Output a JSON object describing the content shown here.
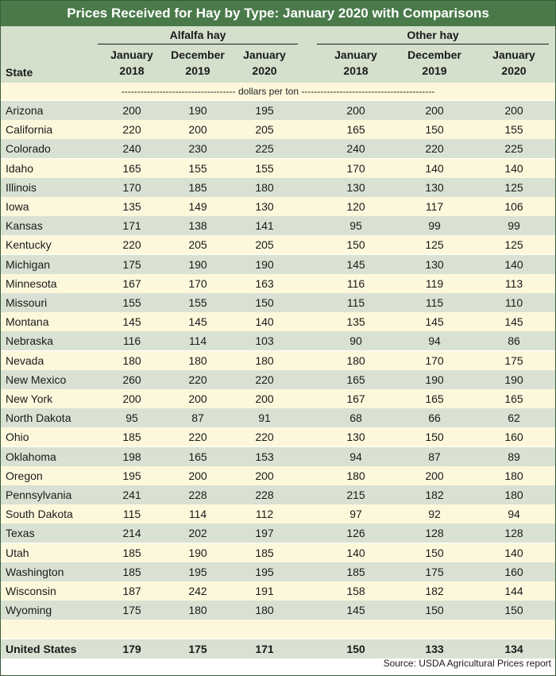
{
  "title": "Prices Received for Hay by Type: January 2020 with Comparisons",
  "groups": {
    "alfalfa": "Alfalfa hay",
    "other": "Other hay"
  },
  "columns": [
    {
      "line1": "January",
      "line2": "2018"
    },
    {
      "line1": "December",
      "line2": "2019"
    },
    {
      "line1": "January",
      "line2": "2020"
    },
    {
      "line1": "January",
      "line2": "2018"
    },
    {
      "line1": "December",
      "line2": "2019"
    },
    {
      "line1": "January",
      "line2": "2020"
    }
  ],
  "state_header": "State",
  "units": "------------------------------------ dollars per ton ------------------------------------------",
  "rows": [
    {
      "state": "Arizona",
      "values": [
        "200",
        "190",
        "195",
        "200",
        "200",
        "200"
      ]
    },
    {
      "state": "California",
      "values": [
        "220",
        "200",
        "205",
        "165",
        "150",
        "155"
      ]
    },
    {
      "state": "Colorado",
      "values": [
        "240",
        "230",
        "225",
        "240",
        "220",
        "225"
      ]
    },
    {
      "state": "Idaho",
      "values": [
        "165",
        "155",
        "155",
        "170",
        "140",
        "140"
      ]
    },
    {
      "state": "Illinois",
      "values": [
        "170",
        "185",
        "180",
        "130",
        "130",
        "125"
      ]
    },
    {
      "state": "Iowa",
      "values": [
        "135",
        "149",
        "130",
        "120",
        "117",
        "106"
      ]
    },
    {
      "state": "Kansas",
      "values": [
        "171",
        "138",
        "141",
        "95",
        "99",
        "99"
      ]
    },
    {
      "state": "Kentucky",
      "values": [
        "220",
        "205",
        "205",
        "150",
        "125",
        "125"
      ]
    },
    {
      "state": "Michigan",
      "values": [
        "175",
        "190",
        "190",
        "145",
        "130",
        "140"
      ]
    },
    {
      "state": "Minnesota",
      "values": [
        "167",
        "170",
        "163",
        "116",
        "119",
        "113"
      ]
    },
    {
      "state": "Missouri",
      "values": [
        "155",
        "155",
        "150",
        "115",
        "115",
        "110"
      ]
    },
    {
      "state": "Montana",
      "values": [
        "145",
        "145",
        "140",
        "135",
        "145",
        "145"
      ]
    },
    {
      "state": "Nebraska",
      "values": [
        "116",
        "114",
        "103",
        "90",
        "94",
        "86"
      ]
    },
    {
      "state": "Nevada",
      "values": [
        "180",
        "180",
        "180",
        "180",
        "170",
        "175"
      ]
    },
    {
      "state": "New Mexico",
      "values": [
        "260",
        "220",
        "220",
        "165",
        "190",
        "190"
      ]
    },
    {
      "state": "New York",
      "values": [
        "200",
        "200",
        "200",
        "167",
        "165",
        "165"
      ]
    },
    {
      "state": "North Dakota",
      "values": [
        "95",
        "87",
        "91",
        "68",
        "66",
        "62"
      ]
    },
    {
      "state": "Ohio",
      "values": [
        "185",
        "220",
        "220",
        "130",
        "150",
        "160"
      ]
    },
    {
      "state": "Oklahoma",
      "values": [
        "198",
        "165",
        "153",
        "94",
        "87",
        "89"
      ]
    },
    {
      "state": "Oregon",
      "values": [
        "195",
        "200",
        "200",
        "180",
        "200",
        "180"
      ]
    },
    {
      "state": "Pennsylvania",
      "values": [
        "241",
        "228",
        "228",
        "215",
        "182",
        "180"
      ]
    },
    {
      "state": "South Dakota",
      "values": [
        "115",
        "114",
        "112",
        "97",
        "92",
        "94"
      ]
    },
    {
      "state": "Texas",
      "values": [
        "214",
        "202",
        "197",
        "126",
        "128",
        "128"
      ]
    },
    {
      "state": "Utah",
      "values": [
        "185",
        "190",
        "185",
        "140",
        "150",
        "140"
      ]
    },
    {
      "state": "Washington",
      "values": [
        "185",
        "195",
        "195",
        "185",
        "175",
        "160"
      ]
    },
    {
      "state": "Wisconsin",
      "values": [
        "187",
        "242",
        "191",
        "158",
        "182",
        "144"
      ]
    },
    {
      "state": "Wyoming",
      "values": [
        "175",
        "180",
        "180",
        "145",
        "150",
        "150"
      ]
    }
  ],
  "total": {
    "state": "United States",
    "values": [
      "179",
      "175",
      "171",
      "150",
      "133",
      "134"
    ]
  },
  "source": "Source: USDA Agricultural Prices report"
}
